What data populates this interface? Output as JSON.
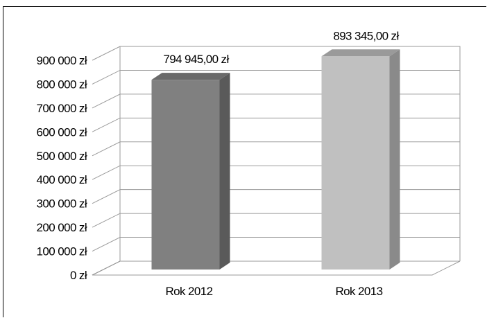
{
  "chart_data": {
    "type": "bar",
    "style": "3d-column",
    "categories": [
      "Rok 2012",
      "Rok 2013"
    ],
    "values": [
      794945.0,
      893345.0
    ],
    "value_labels": [
      "794 945,00 zł",
      "893 345,00 zł"
    ],
    "ylim": [
      0,
      900000
    ],
    "yticks": [
      0,
      100000,
      200000,
      300000,
      400000,
      500000,
      600000,
      700000,
      800000,
      900000
    ],
    "ytick_labels": [
      "0 zł",
      "100 000 zł",
      "200 000 zł",
      "300 000 zł",
      "400 000 zł",
      "500 000 zł",
      "600 000 zł",
      "700 000 zł",
      "800 000 zł",
      "900 000 zł"
    ],
    "grid": true,
    "title": "",
    "xlabel": "",
    "ylabel": "",
    "colors": {
      "bars": [
        "#808080",
        "#c0c0c0"
      ],
      "bar_sides": [
        "#5a5a5a",
        "#8a8a8a"
      ],
      "bar_tops": [
        "#6a6a6a",
        "#9a9a9a"
      ],
      "grid": "#9a9a9a",
      "axis": "#7f7f7f"
    }
  }
}
